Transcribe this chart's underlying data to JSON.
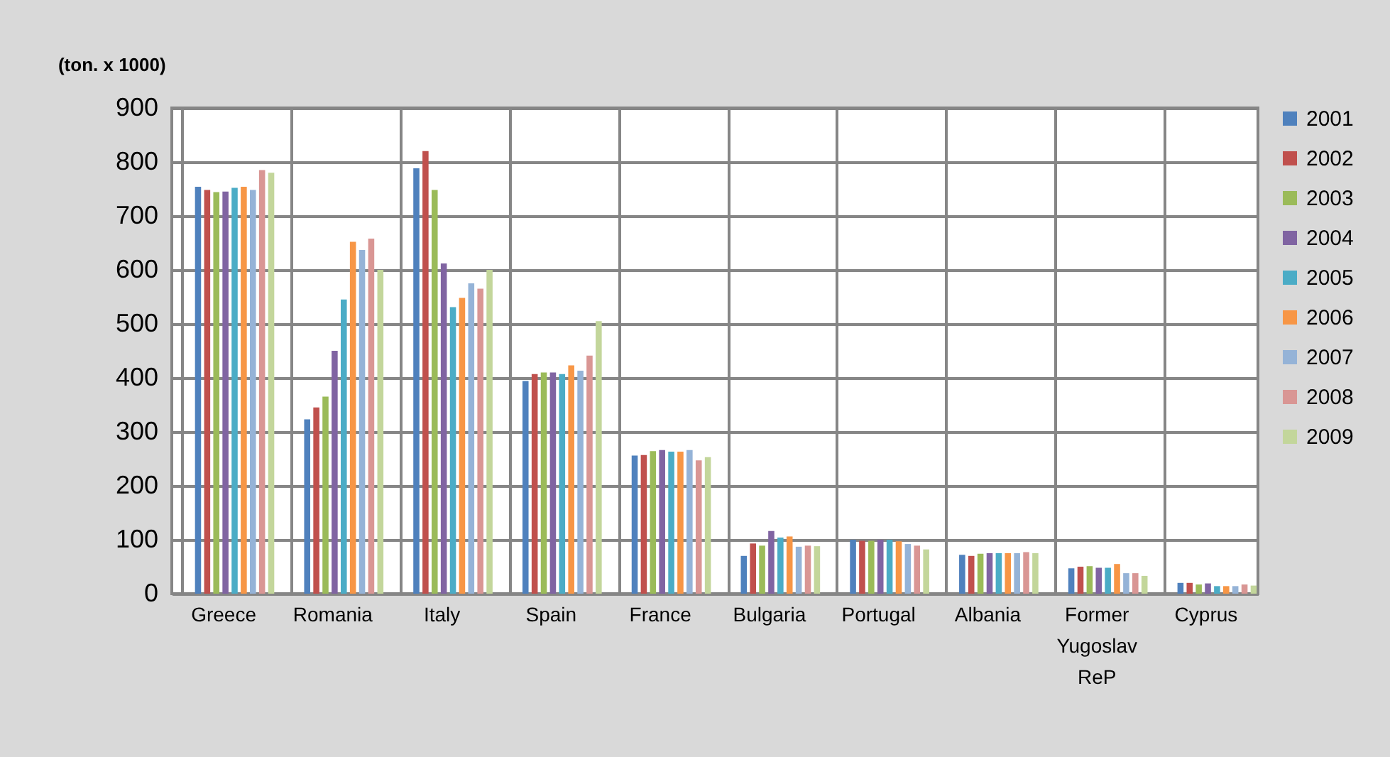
{
  "chart_data": {
    "type": "bar",
    "title": "(ton. x 1000)",
    "categories": [
      "Greece",
      "Romania",
      "Italy",
      "Spain",
      "France",
      "Bulgaria",
      "Portugal",
      "Albania",
      "Former Yugoslav ReP",
      "Cyprus"
    ],
    "series": [
      {
        "name": "2001",
        "color": "#4f81bd",
        "values": [
          754,
          323,
          788,
          394,
          256,
          70,
          100,
          72,
          47,
          20
        ]
      },
      {
        "name": "2002",
        "color": "#c0504d",
        "values": [
          748,
          345,
          820,
          407,
          257,
          93,
          98,
          70,
          50,
          20
        ]
      },
      {
        "name": "2003",
        "color": "#9bbb59",
        "values": [
          744,
          365,
          748,
          410,
          264,
          89,
          98,
          74,
          51,
          17
        ]
      },
      {
        "name": "2004",
        "color": "#8064a2",
        "values": [
          745,
          450,
          612,
          410,
          266,
          116,
          100,
          75,
          48,
          19
        ]
      },
      {
        "name": "2005",
        "color": "#4bacc6",
        "values": [
          752,
          545,
          531,
          407,
          263,
          104,
          100,
          75,
          48,
          14
        ]
      },
      {
        "name": "2006",
        "color": "#f79646",
        "values": [
          754,
          652,
          548,
          423,
          263,
          106,
          97,
          75,
          55,
          14
        ]
      },
      {
        "name": "2007",
        "color": "#95b3d7",
        "values": [
          748,
          637,
          575,
          413,
          266,
          87,
          92,
          75,
          38,
          14
        ]
      },
      {
        "name": "2008",
        "color": "#d99694",
        "values": [
          785,
          658,
          565,
          441,
          247,
          89,
          89,
          77,
          38,
          17
        ]
      },
      {
        "name": "2009",
        "color": "#c3d69b",
        "values": [
          780,
          600,
          600,
          505,
          253,
          88,
          82,
          75,
          33,
          15
        ]
      }
    ],
    "ylim": [
      0,
      900
    ],
    "yticks": [
      0,
      100,
      200,
      300,
      400,
      500,
      600,
      700,
      800,
      900
    ],
    "grid": true,
    "legend": "right"
  }
}
